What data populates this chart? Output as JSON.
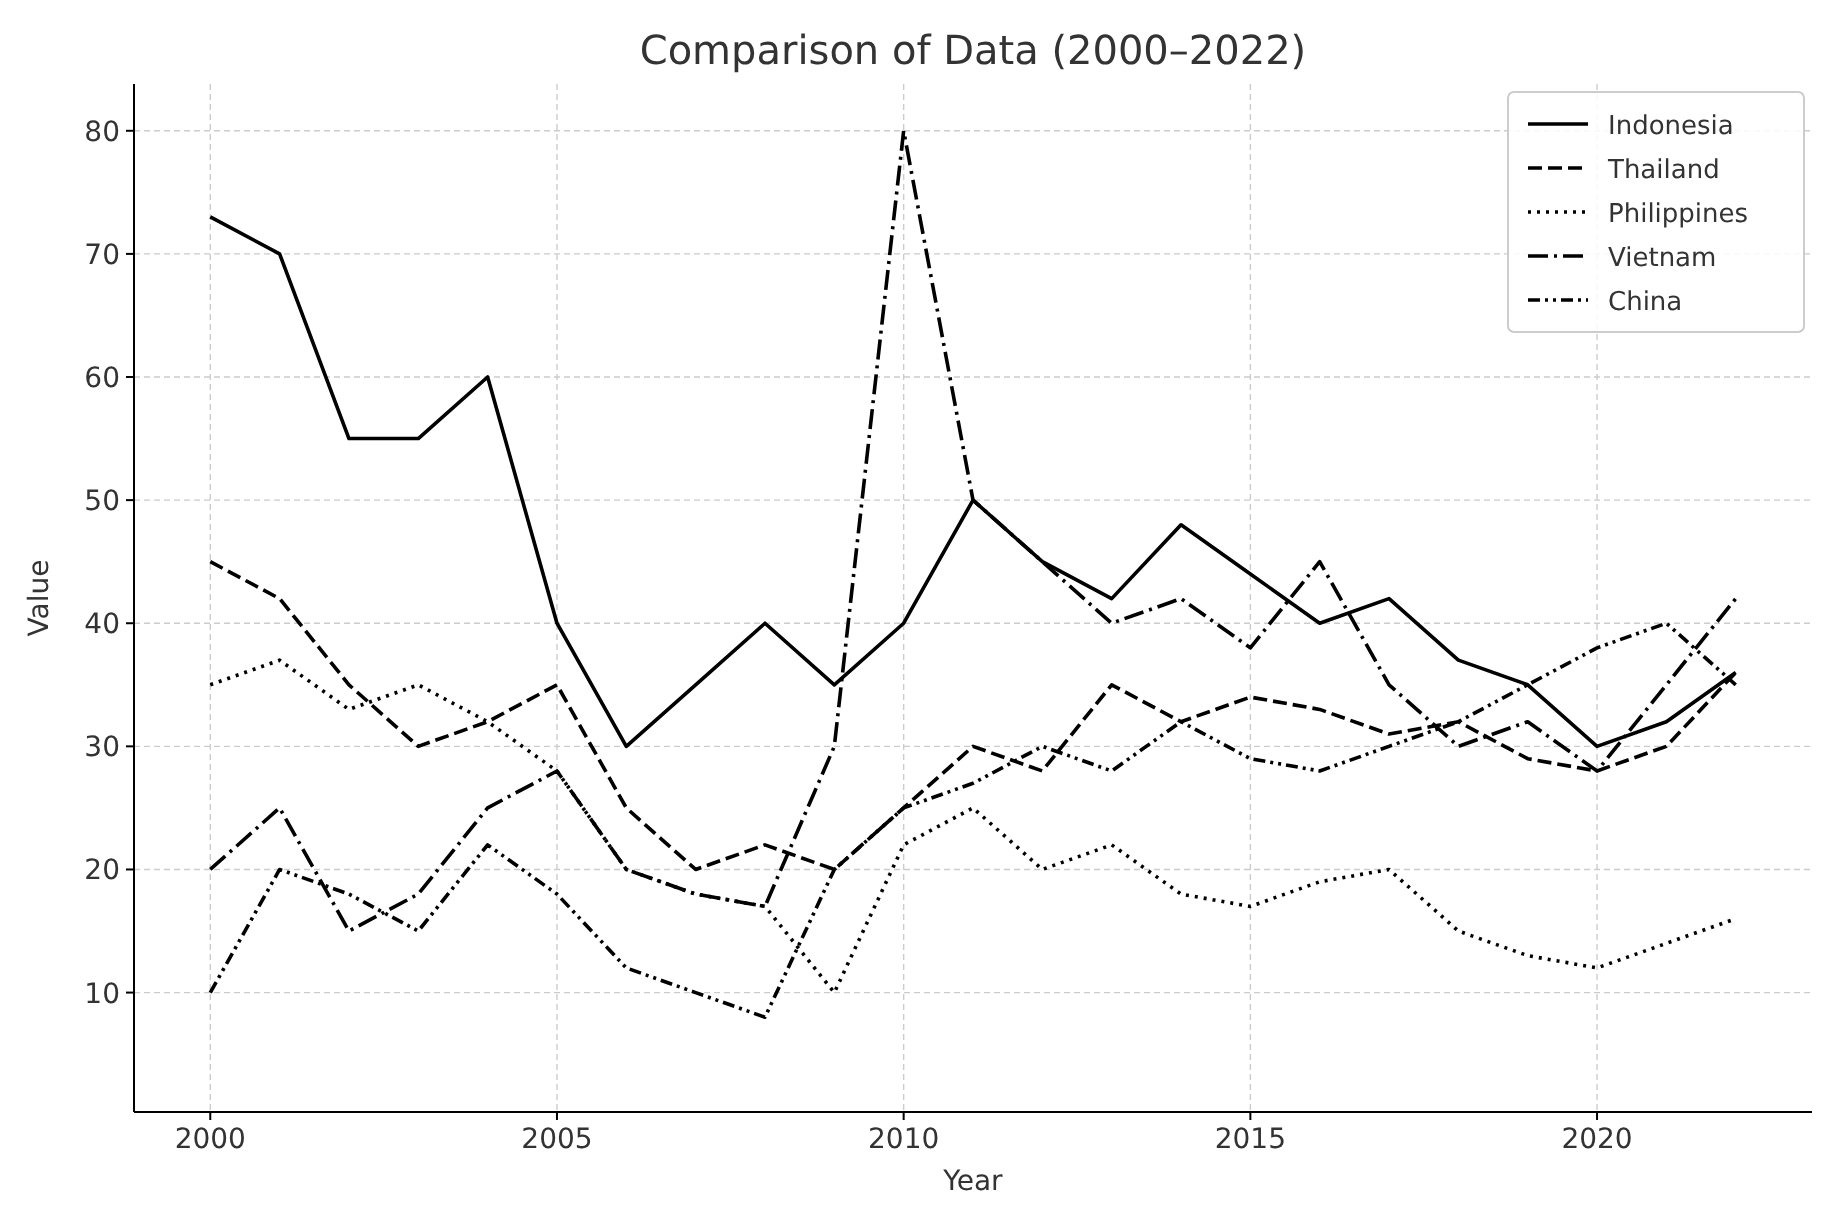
{
  "chart_data": {
    "type": "line",
    "title": "Comparison of Data (2000–2022)",
    "xlabel": "Year",
    "ylabel": "Value",
    "x": [
      2000,
      2001,
      2002,
      2003,
      2004,
      2005,
      2006,
      2007,
      2008,
      2009,
      2010,
      2011,
      2012,
      2013,
      2014,
      2015,
      2016,
      2017,
      2018,
      2019,
      2020,
      2021,
      2022
    ],
    "series": [
      {
        "name": "Indonesia",
        "color": "#000000",
        "line_style": "solid",
        "values": [
          73,
          70,
          55,
          55,
          60,
          40,
          30,
          35,
          40,
          35,
          40,
          50,
          45,
          42,
          48,
          44,
          40,
          42,
          37,
          35,
          30,
          32,
          36
        ]
      },
      {
        "name": "Thailand",
        "color": "#000000",
        "line_style": "dashed",
        "values": [
          45,
          42,
          35,
          30,
          32,
          35,
          25,
          20,
          22,
          20,
          25,
          30,
          28,
          35,
          32,
          34,
          33,
          31,
          32,
          29,
          28,
          30,
          36
        ]
      },
      {
        "name": "Philippines",
        "color": "#000000",
        "line_style": "dotted",
        "values": [
          35,
          37,
          33,
          35,
          32,
          28,
          20,
          18,
          17,
          10,
          22,
          25,
          20,
          22,
          18,
          17,
          19,
          20,
          15,
          13,
          12,
          14,
          16
        ]
      },
      {
        "name": "Vietnam",
        "color": "#000000",
        "line_style": "dashdot",
        "values": [
          20,
          25,
          15,
          18,
          25,
          28,
          20,
          18,
          17,
          30,
          80,
          50,
          45,
          40,
          42,
          38,
          45,
          35,
          30,
          32,
          28,
          35,
          42
        ]
      },
      {
        "name": "China",
        "color": "#000000",
        "line_style": "dashdotdot",
        "values": [
          10,
          20,
          18,
          15,
          22,
          18,
          12,
          10,
          8,
          20,
          25,
          27,
          30,
          28,
          32,
          29,
          28,
          30,
          32,
          35,
          38,
          40,
          35
        ]
      }
    ],
    "xlim": [
      1998.9,
      2023.1
    ],
    "xticks": [
      2000,
      2005,
      2010,
      2015,
      2020
    ],
    "ylim": [
      0.3,
      83.8
    ],
    "yticks": [
      10,
      20,
      30,
      40,
      50,
      60,
      70,
      80
    ],
    "grid": true,
    "legend": "top right",
    "marker": "none"
  }
}
